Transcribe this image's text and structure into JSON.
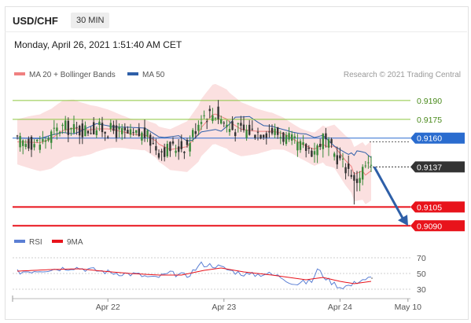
{
  "header": {
    "symbol": "USD/CHF",
    "timeframe": "30 MIN",
    "timestamp": "Monday, April 26, 2021 1:51:40 AM CET",
    "credit": "Research © 2021 Trading Central"
  },
  "colors": {
    "candle": "#333333",
    "candle_up": "#3a8a3a",
    "bollinger_band": "#f7c6c6",
    "ma20": "#f08080",
    "ma50": "#2e5fa8",
    "resistance": "#8cc63f",
    "pivot": "#2a6ccf",
    "support": "#e8131b",
    "price": "#333333",
    "rsi": "#5b7fd4",
    "rsi_ma": "#e8131b",
    "arrow": "#2e5fa8"
  },
  "chart_data": [
    {
      "type": "candlestick",
      "legend": [
        {
          "name": "MA 20 + Bollinger Bands",
          "color": "#f08080"
        },
        {
          "name": "MA 50",
          "color": "#2e5fa8"
        }
      ],
      "ylim": [
        0.9082,
        0.92
      ],
      "x_ticks": [
        "Apr 22",
        "Apr 23",
        "Apr 24",
        "May 10"
      ],
      "x_tick_index": [
        32,
        73,
        114,
        138
      ],
      "candle_count": 126,
      "close_path": [
        [
          0,
          0.9157
        ],
        [
          8,
          0.9156
        ],
        [
          12,
          0.9163
        ],
        [
          16,
          0.9169
        ],
        [
          22,
          0.9166
        ],
        [
          28,
          0.9168
        ],
        [
          34,
          0.9166
        ],
        [
          40,
          0.9162
        ],
        [
          45,
          0.9163
        ],
        [
          50,
          0.915
        ],
        [
          55,
          0.9152
        ],
        [
          60,
          0.9154
        ],
        [
          65,
          0.9178
        ],
        [
          70,
          0.918
        ],
        [
          75,
          0.9168
        ],
        [
          80,
          0.9166
        ],
        [
          85,
          0.9165
        ],
        [
          90,
          0.9166
        ],
        [
          95,
          0.916
        ],
        [
          100,
          0.9153
        ],
        [
          105,
          0.915
        ],
        [
          108,
          0.916
        ],
        [
          112,
          0.9147
        ],
        [
          116,
          0.9137
        ],
        [
          118,
          0.9133
        ],
        [
          119,
          0.9123
        ],
        [
          121,
          0.9131
        ],
        [
          123,
          0.9138
        ],
        [
          125,
          0.9137
        ]
      ],
      "levels": [
        {
          "label": "0.9190",
          "value": 0.919,
          "kind": "resistance"
        },
        {
          "label": "0.9175",
          "value": 0.9175,
          "kind": "resistance"
        },
        {
          "label": "0.9160",
          "value": 0.916,
          "kind": "pivot"
        },
        {
          "label": "0.9137",
          "value": 0.9137,
          "kind": "price"
        },
        {
          "label": "0.9105",
          "value": 0.9105,
          "kind": "support"
        },
        {
          "label": "0.9090",
          "value": 0.909,
          "kind": "support"
        }
      ],
      "forecast_arrow": {
        "from": 0.9137,
        "to": 0.909
      },
      "grid": false
    },
    {
      "type": "line",
      "legend": [
        {
          "name": "RSI",
          "color": "#5b7fd4"
        },
        {
          "name": "9MA",
          "color": "#e8131b"
        }
      ],
      "ylim": [
        20,
        80
      ],
      "y_ticks": [
        {
          "label": "70",
          "value": 70
        },
        {
          "label": "50",
          "value": 50
        },
        {
          "label": "30",
          "value": 30
        }
      ],
      "rsi_path": [
        [
          0,
          52
        ],
        [
          10,
          55
        ],
        [
          20,
          58
        ],
        [
          28,
          54
        ],
        [
          34,
          51
        ],
        [
          42,
          49
        ],
        [
          48,
          44
        ],
        [
          54,
          50
        ],
        [
          60,
          47
        ],
        [
          65,
          62
        ],
        [
          70,
          60
        ],
        [
          76,
          53
        ],
        [
          82,
          48
        ],
        [
          88,
          50
        ],
        [
          93,
          46
        ],
        [
          98,
          37
        ],
        [
          104,
          40
        ],
        [
          106,
          55
        ],
        [
          110,
          41
        ],
        [
          114,
          33
        ],
        [
          118,
          35
        ],
        [
          121,
          42
        ],
        [
          125,
          44
        ]
      ],
      "ma9_path": [
        [
          0,
          53
        ],
        [
          12,
          55
        ],
        [
          22,
          56
        ],
        [
          30,
          53
        ],
        [
          40,
          50
        ],
        [
          50,
          48
        ],
        [
          58,
          48
        ],
        [
          66,
          54
        ],
        [
          72,
          57
        ],
        [
          80,
          52
        ],
        [
          90,
          48
        ],
        [
          96,
          45
        ],
        [
          102,
          42
        ],
        [
          108,
          45
        ],
        [
          114,
          40
        ],
        [
          119,
          37
        ],
        [
          125,
          40
        ]
      ]
    }
  ]
}
